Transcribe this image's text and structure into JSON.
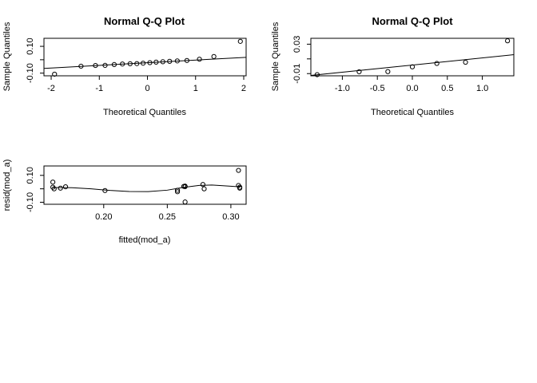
{
  "chart_data": [
    {
      "type": "scatter",
      "title": "Normal Q-Q Plot",
      "xlabel": "Theoretical Quantiles",
      "ylabel": "Sample Quantiles",
      "xlim": [
        -2.15,
        2.05
      ],
      "ylim": [
        -0.12,
        0.16
      ],
      "xticks": [
        -2,
        -1,
        0,
        1,
        2
      ],
      "yticks": [
        -0.1,
        0.0,
        0.1
      ],
      "ytick_labels": [
        "-0.10",
        "",
        "0.10"
      ],
      "points": {
        "x": [
          -1.93,
          -1.38,
          -1.08,
          -0.88,
          -0.69,
          -0.52,
          -0.36,
          -0.22,
          -0.09,
          0.05,
          0.18,
          0.32,
          0.46,
          0.62,
          0.82,
          1.08,
          1.38,
          1.93
        ],
        "y": [
          -0.108,
          -0.048,
          -0.043,
          -0.042,
          -0.036,
          -0.032,
          -0.03,
          -0.029,
          -0.026,
          -0.022,
          -0.018,
          -0.015,
          -0.012,
          -0.009,
          -0.006,
          0.004,
          0.024,
          0.137
        ]
      },
      "line": {
        "x": [
          -2.15,
          2.05
        ],
        "y": [
          -0.065,
          0.018
        ]
      }
    },
    {
      "type": "scatter",
      "title": "Normal Q-Q Plot",
      "xlabel": "Theoretical Quantiles",
      "ylabel": "Sample Quantiles",
      "xlim": [
        -1.45,
        1.45
      ],
      "ylim": [
        -0.013,
        0.038
      ],
      "xticks": [
        -1.0,
        -0.5,
        0.0,
        0.5,
        1.0
      ],
      "yticks": [
        -0.01,
        0.01,
        0.03
      ],
      "ytick_labels": [
        "-0.01",
        "",
        "0.03"
      ],
      "points": {
        "x": [
          -1.36,
          -0.76,
          -0.35,
          0.0,
          0.35,
          0.76,
          1.36
        ],
        "y": [
          -0.0115,
          -0.0075,
          -0.0073,
          -0.0008,
          0.0038,
          0.0054,
          0.0346
        ]
      },
      "line": {
        "x": [
          -1.45,
          1.45
        ],
        "y": [
          -0.0125,
          0.0157
        ]
      }
    },
    {
      "type": "scatter",
      "title": "",
      "xlabel": "fitted(mod_a)",
      "ylabel": "resid(mod_a)",
      "xlim": [
        0.153,
        0.312
      ],
      "ylim": [
        -0.115,
        0.17
      ],
      "xticks": [
        0.2,
        0.25,
        0.3
      ],
      "yticks": [
        -0.1,
        0.0,
        0.1
      ],
      "ytick_labels": [
        "-0.10",
        "",
        "0.10"
      ],
      "points": {
        "x": [
          0.16,
          0.16,
          0.161,
          0.166,
          0.17,
          0.201,
          0.258,
          0.258,
          0.263,
          0.264,
          0.264,
          0.264,
          0.278,
          0.279,
          0.306,
          0.306,
          0.307,
          0.307
        ],
        "y": [
          0.05,
          0.012,
          0.0,
          0.005,
          0.015,
          -0.013,
          -0.011,
          -0.022,
          0.018,
          0.02,
          0.016,
          -0.098,
          0.032,
          0.0,
          0.137,
          0.025,
          0.012,
          0.005
        ]
      },
      "smooth": {
        "x": [
          0.16,
          0.175,
          0.19,
          0.205,
          0.22,
          0.235,
          0.25,
          0.262,
          0.275,
          0.285,
          0.295,
          0.307
        ],
        "y": [
          0.01,
          0.008,
          0.0,
          -0.012,
          -0.02,
          -0.021,
          -0.01,
          0.01,
          0.025,
          0.028,
          0.022,
          0.015
        ]
      }
    }
  ]
}
